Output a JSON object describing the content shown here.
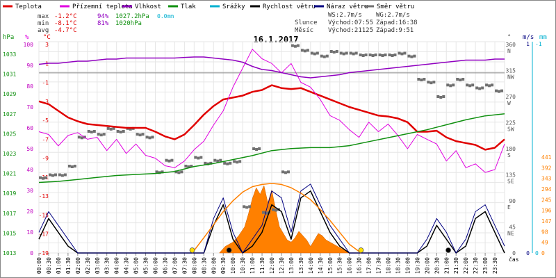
{
  "chart_data": {
    "type": "line",
    "title": "16.1.2017",
    "legend": [
      {
        "name": "Teplota",
        "color": "#e00000"
      },
      {
        "name": "Přízemní teplota",
        "color": "#e000e0"
      },
      {
        "name": "Vlhkost",
        "color": "#9000c0"
      },
      {
        "name": "Tlak",
        "color": "#109010"
      },
      {
        "name": "Srážky",
        "color": "#00b0d0"
      },
      {
        "name": "Rychlost větru",
        "color": "#000000"
      },
      {
        "name": "Náraz větru",
        "color": "#000080"
      },
      {
        "name": "Směr větru",
        "color": "#707070"
      }
    ],
    "stats": {
      "max_label": "max",
      "max_temp": "-1.2°C",
      "max_hum": "94%",
      "max_press": "1027.2hPa",
      "max_rain": "0.0mm",
      "min_label": "min",
      "min_temp": "-8.1°C",
      "min_hum": "81%",
      "min_press": "1020hPa",
      "avg_label": "avg",
      "avg_temp": "-4.7°C"
    },
    "wind_info": {
      "ws": "WS:2.7m/s",
      "wg": "WG:2.7m/s"
    },
    "sun_info": {
      "label": "Slunce",
      "rise": "Východ:07:55",
      "set": "Západ:16:38"
    },
    "moon_info": {
      "label": "Měsíc",
      "rise": "Východ:21125",
      "set": "Západ:9:51"
    },
    "axes": {
      "pressure": {
        "unit": "hPa",
        "ticks": [
          "1033",
          "1031",
          "1029",
          "1027",
          "1025",
          "1023",
          "1021",
          "1019",
          "1017",
          "1015",
          "1013"
        ]
      },
      "humidity": {
        "unit": "%",
        "ticks": [
          "100",
          "90",
          "80",
          "70",
          "60",
          "50",
          "40",
          "30",
          "20",
          "10",
          "0"
        ]
      },
      "temperature": {
        "unit": "°C",
        "ticks": [
          "3",
          "1",
          "-1",
          "-3",
          "-5",
          "-7",
          "-9",
          "-11",
          "-13",
          "-15",
          "-17",
          "-19"
        ]
      },
      "direction": {
        "unit": "°",
        "ticks": [
          "360",
          "315",
          "270",
          "225",
          "180",
          "135",
          "90",
          "45",
          "0"
        ],
        "compass": [
          "N",
          "NW",
          "W",
          "SW",
          "S",
          "SE",
          "E",
          "NE",
          ""
        ]
      },
      "wind": {
        "unit": "m/s",
        "ticks": [
          "1",
          "0"
        ]
      },
      "rain": {
        "unit": "mm",
        "ticks": [
          "-1",
          "0"
        ]
      },
      "radiation": {
        "ticks": [
          "441",
          "392",
          "343",
          "294",
          "245",
          "196",
          "147",
          "98",
          "49",
          "0"
        ]
      },
      "time": {
        "unit": "čas",
        "ticks": [
          "00:00",
          "00:30",
          "01:00",
          "01:30",
          "02:00",
          "02:30",
          "03:00",
          "03:30",
          "04:00",
          "04:30",
          "05:00",
          "05:30",
          "06:00",
          "06:30",
          "07:00",
          "07:30",
          "08:00",
          "08:30",
          "09:00",
          "09:30",
          "10:00",
          "10:30",
          "11:00",
          "11:30",
          "12:00",
          "12:30",
          "13:00",
          "13:30",
          "14:00",
          "14:30",
          "15:00",
          "15:30",
          "16:00",
          "16:30",
          "17:00",
          "17:30",
          "18:00",
          "18:30",
          "19:00",
          "19:30",
          "20:00",
          "20:30",
          "21:00",
          "21:30",
          "22:00",
          "22:30",
          "23:00",
          "23:30"
        ]
      }
    },
    "x_range": [
      0,
      24
    ],
    "series": [
      {
        "name": "Teplota",
        "axis": "temperature",
        "color": "#e00000",
        "x": [
          0,
          0.5,
          1,
          1.5,
          2,
          2.5,
          3,
          3.5,
          4,
          4.5,
          5,
          5.5,
          6,
          6.5,
          7,
          7.5,
          8,
          8.5,
          9,
          9.5,
          10,
          10.5,
          11,
          11.5,
          12,
          12.5,
          13,
          13.5,
          14,
          14.5,
          15,
          15.5,
          16,
          16.5,
          17,
          17.5,
          18,
          18.5,
          19,
          19.5,
          20,
          20.5,
          21,
          21.5,
          22,
          22.5,
          23,
          23.5,
          24
        ],
        "y": [
          -3,
          -3.3,
          -4,
          -4.7,
          -5.1,
          -5.4,
          -5.5,
          -5.6,
          -5.7,
          -5.8,
          -5.8,
          -5.8,
          -6.2,
          -6.7,
          -7,
          -6.5,
          -5.5,
          -4.4,
          -3.5,
          -2.8,
          -2.6,
          -2.4,
          -2,
          -1.8,
          -1.3,
          -1.6,
          -1.7,
          -1.6,
          -2,
          -2.4,
          -2.8,
          -3.2,
          -3.6,
          -3.9,
          -4.2,
          -4.5,
          -4.6,
          -4.8,
          -5.2,
          -6.2,
          -6.2,
          -6.1,
          -6.8,
          -7.2,
          -7.4,
          -7.6,
          -8.1,
          -7.9,
          -7
        ]
      },
      {
        "name": "Přízemní teplota",
        "axis": "temperature",
        "color": "#e000e0",
        "x": [
          0,
          0.5,
          1,
          1.5,
          2,
          2.5,
          3,
          3.5,
          4,
          4.5,
          5,
          5.5,
          6,
          6.5,
          7,
          7.5,
          8,
          8.5,
          9,
          9.5,
          10,
          10.5,
          11,
          11.5,
          12,
          12.5,
          13,
          13.5,
          14,
          14.5,
          15,
          15.5,
          16,
          16.5,
          17,
          17.5,
          18,
          18.5,
          19,
          19.5,
          20,
          20.5,
          21,
          21.5,
          22,
          22.5,
          23,
          23.5,
          24
        ],
        "y": [
          -6.2,
          -6.5,
          -7.7,
          -6.6,
          -6.3,
          -7,
          -6.8,
          -8.2,
          -7,
          -8.5,
          -7.5,
          -8.7,
          -9,
          -9.8,
          -10,
          -9.3,
          -8.1,
          -7.2,
          -5.5,
          -4,
          -1.5,
          0.5,
          2.5,
          1.5,
          1,
          0,
          1,
          -1,
          -1.5,
          -2.8,
          -4.5,
          -5,
          -6,
          -6.8,
          -5.2,
          -6.2,
          -5.4,
          -6.6,
          -8,
          -6.5,
          -7,
          -7.5,
          -9.3,
          -8.2,
          -10,
          -9.6,
          -10.5,
          -10.2,
          -7.5
        ]
      },
      {
        "name": "Vlhkost",
        "axis": "humidity",
        "color": "#9000c0",
        "x": [
          0,
          0.5,
          1,
          1.5,
          2,
          2.5,
          3,
          3.5,
          4,
          4.5,
          5,
          5.5,
          6,
          6.5,
          7,
          7.5,
          8,
          8.5,
          9,
          9.5,
          10,
          10.5,
          11,
          11.5,
          12,
          12.5,
          13,
          13.5,
          14,
          14.5,
          15,
          15.5,
          16,
          16.5,
          17,
          17.5,
          18,
          18.5,
          19,
          19.5,
          20,
          20.5,
          21,
          21.5,
          22,
          22.5,
          23,
          23.5,
          24
        ],
        "y": [
          90.5,
          91,
          91,
          91.5,
          92,
          92,
          92.5,
          93,
          93,
          93.5,
          93.5,
          93.5,
          93.5,
          93.5,
          93.5,
          93.8,
          94,
          94,
          93.5,
          93,
          92.5,
          91.5,
          89.5,
          88,
          87.5,
          86.5,
          85.5,
          84.5,
          84,
          84.5,
          85,
          85.5,
          86.5,
          87,
          87.5,
          88,
          88.5,
          89,
          89.5,
          90,
          90.5,
          91,
          91.5,
          92,
          92.5,
          92.5,
          92.5,
          93,
          93
        ]
      },
      {
        "name": "Tlak",
        "axis": "pressure",
        "color": "#109010",
        "x": [
          0,
          1,
          2,
          3,
          4,
          5,
          6,
          7,
          8,
          9,
          10,
          11,
          12,
          13,
          14,
          15,
          16,
          17,
          18,
          19,
          20,
          21,
          22,
          23,
          24
        ],
        "y": [
          1020.1,
          1020.2,
          1020.4,
          1020.6,
          1020.8,
          1020.9,
          1021,
          1021.2,
          1021.7,
          1022,
          1022.4,
          1022.8,
          1023.3,
          1023.5,
          1023.6,
          1023.6,
          1023.8,
          1024.2,
          1024.6,
          1025,
          1025.4,
          1025.9,
          1026.4,
          1026.8,
          1027
        ]
      },
      {
        "name": "Rychlost větru",
        "axis": "wind",
        "color": "#000000",
        "x": [
          0,
          0.5,
          1,
          1.5,
          2,
          2.5,
          3,
          3.5,
          4,
          4.5,
          5,
          5.5,
          6,
          6.5,
          7,
          7.5,
          8,
          8.5,
          9,
          9.5,
          10,
          10.5,
          11,
          11.5,
          12,
          12.5,
          13,
          13.5,
          14,
          14.5,
          15,
          15.5,
          16,
          16.5,
          17,
          17.5,
          18,
          18.5,
          19,
          19.5,
          20,
          20.5,
          21,
          21.5,
          22,
          22.5,
          23,
          23.5,
          24
        ],
        "y": [
          0.2,
          0.5,
          0.3,
          0.1,
          0,
          0,
          0,
          0,
          0,
          0,
          0,
          0,
          0,
          0,
          0,
          0,
          0,
          0,
          0.4,
          0.7,
          0.2,
          0,
          0.1,
          0.3,
          0.7,
          0.6,
          0.2,
          0.8,
          0.9,
          0.6,
          0.3,
          0.1,
          0,
          0,
          0,
          0,
          0,
          0,
          0,
          0,
          0.1,
          0.4,
          0.2,
          0,
          0.1,
          0.5,
          0.6,
          0.3,
          0
        ]
      },
      {
        "name": "Náraz větru",
        "axis": "wind",
        "color": "#000080",
        "x": [
          0,
          0.5,
          1,
          1.5,
          2,
          2.5,
          3,
          3.5,
          4,
          4.5,
          5,
          5.5,
          6,
          6.5,
          7,
          7.5,
          8,
          8.5,
          9,
          9.5,
          10,
          10.5,
          11,
          11.5,
          12,
          12.5,
          13,
          13.5,
          14,
          14.5,
          15,
          15.5,
          16,
          16.5,
          17,
          17.5,
          18,
          18.5,
          19,
          19.5,
          20,
          20.5,
          21,
          21.5,
          22,
          22.5,
          23,
          23.5,
          24
        ],
        "y": [
          0.3,
          0.6,
          0.4,
          0.2,
          0,
          0,
          0,
          0,
          0,
          0,
          0,
          0,
          0,
          0,
          0,
          0,
          0,
          0,
          0.5,
          0.8,
          0.3,
          0,
          0.2,
          0.4,
          0.9,
          0.8,
          0.3,
          0.9,
          1.0,
          0.7,
          0.4,
          0.2,
          0,
          0,
          0,
          0,
          0,
          0,
          0,
          0,
          0.2,
          0.5,
          0.3,
          0,
          0.2,
          0.6,
          0.7,
          0.4,
          0.1
        ]
      },
      {
        "name": "Slunce",
        "axis": "radiation",
        "color": "#ff8000",
        "x": [
          7.9,
          8.5,
          9,
          9.5,
          10,
          10.5,
          11,
          11.5,
          12,
          12.5,
          13,
          13.5,
          14,
          14.5,
          15,
          15.5,
          16,
          16.6
        ],
        "y": [
          0,
          70,
          130,
          190,
          240,
          280,
          305,
          315,
          320,
          315,
          300,
          275,
          245,
          200,
          150,
          95,
          40,
          0
        ]
      }
    ],
    "radiation_area": {
      "x": [
        9.3,
        9.6,
        10,
        10.3,
        10.6,
        10.8,
        11,
        11.2,
        11.4,
        11.6,
        11.8,
        12,
        12.2,
        12.4,
        12.6,
        12.8,
        13,
        13.2,
        13.4,
        13.6,
        13.8,
        14,
        14.2,
        14.4,
        14.6,
        14.8,
        15,
        15.2,
        15.5,
        15.8,
        16
      ],
      "y": [
        0,
        30,
        50,
        80,
        120,
        180,
        250,
        300,
        270,
        310,
        230,
        290,
        200,
        120,
        90,
        60,
        50,
        70,
        100,
        80,
        60,
        30,
        60,
        90,
        80,
        60,
        50,
        40,
        25,
        10,
        0
      ]
    },
    "wind_direction": {
      "x": [
        0,
        0.5,
        1,
        1.5,
        2,
        2.5,
        3,
        3.5,
        4,
        4.5,
        5,
        5.5,
        6,
        6.5,
        7,
        7.5,
        8,
        8.5,
        9,
        9.5,
        10,
        10.5,
        11,
        11.5,
        12,
        12.5,
        13,
        13.5,
        14,
        14.5,
        15,
        15.5,
        16,
        16.5,
        17,
        17.5,
        18,
        18.5,
        19,
        19.5,
        20,
        20.5,
        21,
        21.5,
        22,
        22.5,
        23,
        23.5
      ],
      "y": [
        130,
        135,
        135,
        150,
        200,
        210,
        205,
        215,
        210,
        215,
        205,
        200,
        140,
        160,
        140,
        150,
        165,
        155,
        160,
        155,
        158,
        80,
        180,
        70,
        75,
        140,
        358,
        350,
        345,
        340,
        348,
        345,
        345,
        342,
        342,
        342,
        342,
        345,
        340,
        300,
        295,
        270,
        290,
        300,
        290,
        285,
        290,
        280
      ]
    },
    "markers": [
      {
        "x": 7.9,
        "type": "sunrise",
        "color": "#ffe000"
      },
      {
        "x": 9.8,
        "type": "moonset",
        "color": "#000000"
      },
      {
        "x": 16.6,
        "type": "sunset",
        "color": "#ffe000"
      },
      {
        "x": 21.1,
        "type": "moonrise",
        "color": "#000000"
      }
    ]
  }
}
